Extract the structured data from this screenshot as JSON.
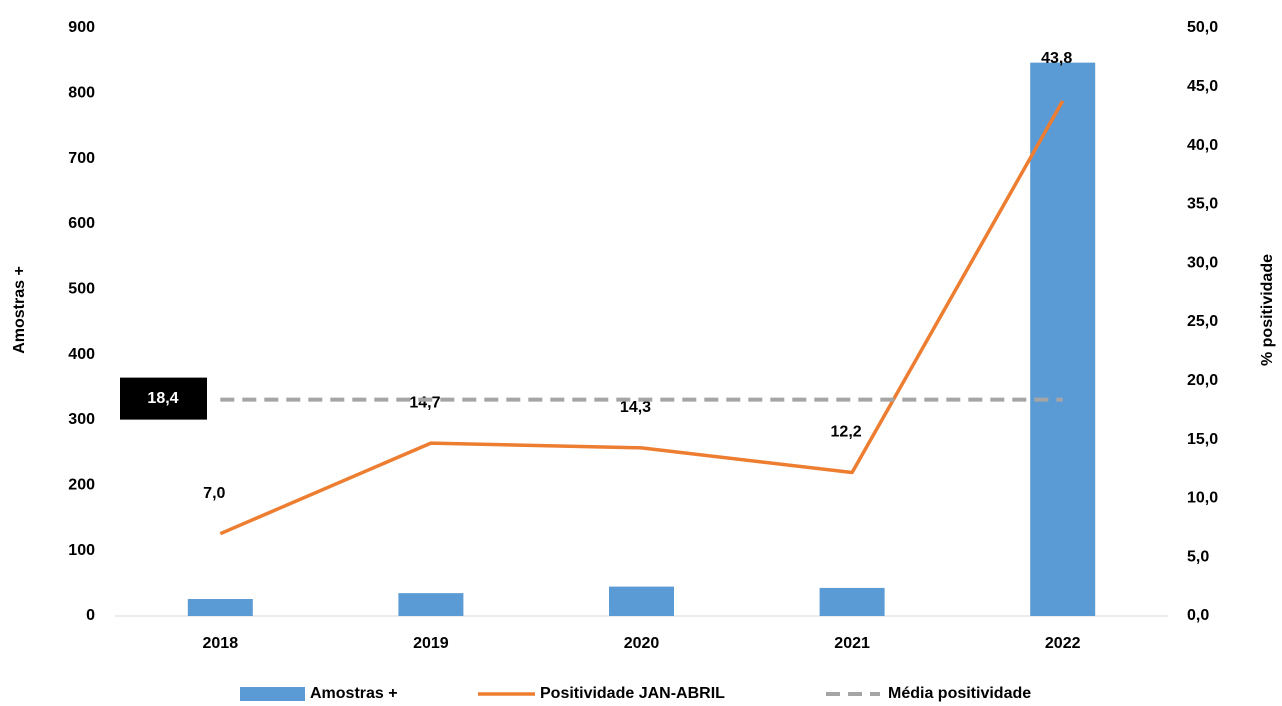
{
  "chart_data": {
    "type": "bar",
    "categories": [
      "2018",
      "2019",
      "2020",
      "2021",
      "2022"
    ],
    "series": [
      {
        "name": "Amostras +",
        "type": "bar",
        "color": "#5b9bd5",
        "values": [
          26,
          35,
          45,
          43,
          847
        ]
      },
      {
        "name": "Positividade JAN-ABRIL",
        "type": "line",
        "axis": "y2",
        "color": "#ed7d31",
        "values": [
          7.0,
          14.7,
          14.3,
          12.2,
          43.8
        ],
        "value_labels": [
          "7,0",
          "14,7",
          "14,3",
          "12,2",
          "43,8"
        ]
      }
    ],
    "reference_line": {
      "name": "Média positividade",
      "value": 18.4,
      "label": "18,4",
      "color": "#a5a5a5",
      "axis": "y2"
    },
    "ylabel": "Amostras +",
    "y2label": "% positividade",
    "ylim": [
      0,
      900
    ],
    "yticks": [
      0,
      100,
      200,
      300,
      400,
      500,
      600,
      700,
      800,
      900
    ],
    "y2lim": [
      0,
      50
    ],
    "y2ticks": [
      {
        "value": 0,
        "label": "0,0"
      },
      {
        "value": 5,
        "label": "5,0"
      },
      {
        "value": 10,
        "label": "10,0"
      },
      {
        "value": 15,
        "label": "15,0"
      },
      {
        "value": 20,
        "label": "20,0"
      },
      {
        "value": 25,
        "label": "25,0"
      },
      {
        "value": 30,
        "label": "30,0"
      },
      {
        "value": 35,
        "label": "35,0"
      },
      {
        "value": 40,
        "label": "40,0"
      },
      {
        "value": 45,
        "label": "45,0"
      },
      {
        "value": 50,
        "label": "50,0"
      }
    ],
    "legend": "bottom"
  }
}
